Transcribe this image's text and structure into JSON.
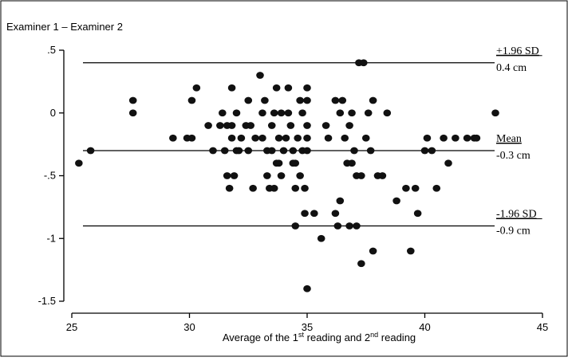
{
  "chart_data": {
    "type": "scatter",
    "ylabel": "Examiner 1 – Examiner 2",
    "xlabel": {
      "prefix": "Average of the 1",
      "sup1": "st",
      "middle": " reading and 2",
      "sup2": "nd",
      "suffix": " reading"
    },
    "xlim": [
      25,
      45
    ],
    "ylim": [
      -1.5,
      0.5
    ],
    "x_ticks": [
      25,
      30,
      35,
      40,
      45
    ],
    "y_ticks": [
      {
        "value": 0.5,
        "label": ".5"
      },
      {
        "value": 0,
        "label": "0"
      },
      {
        "value": -0.5,
        "label": "-.5"
      },
      {
        "value": -1,
        "label": "-1"
      },
      {
        "value": -1.5,
        "label": "-1.5"
      }
    ],
    "grid": false,
    "reference_lines": [
      {
        "y": 0.4,
        "label_top": "+1.96 SD",
        "label_bottom": "0.4 cm"
      },
      {
        "y": -0.3,
        "label_top": "Mean",
        "label_bottom": "-0.3 cm"
      },
      {
        "y": -0.9,
        "label_top": "-1.96 SD",
        "label_bottom": "-0.9 cm"
      }
    ],
    "points": [
      [
        25.3,
        -0.4
      ],
      [
        25.8,
        -0.3
      ],
      [
        27.6,
        0.1
      ],
      [
        27.6,
        0
      ],
      [
        29.3,
        -0.2
      ],
      [
        29.9,
        -0.2
      ],
      [
        30.1,
        -0.2
      ],
      [
        30.1,
        0.1
      ],
      [
        30.3,
        0.2
      ],
      [
        30.8,
        -0.1
      ],
      [
        31.0,
        -0.3
      ],
      [
        31.3,
        -0.1
      ],
      [
        31.4,
        0
      ],
      [
        31.5,
        -0.3
      ],
      [
        31.6,
        -0.1
      ],
      [
        31.6,
        -0.5
      ],
      [
        31.7,
        -0.6
      ],
      [
        31.8,
        0.2
      ],
      [
        31.8,
        -0.1
      ],
      [
        31.8,
        -0.2
      ],
      [
        31.9,
        -0.5
      ],
      [
        32.0,
        0
      ],
      [
        32.0,
        -0.3
      ],
      [
        32.1,
        -0.3
      ],
      [
        32.2,
        -0.2
      ],
      [
        32.4,
        -0.1
      ],
      [
        32.5,
        0.1
      ],
      [
        32.5,
        -0.3
      ],
      [
        32.6,
        -0.1
      ],
      [
        32.7,
        -0.6
      ],
      [
        32.8,
        -0.2
      ],
      [
        33.0,
        0.3
      ],
      [
        33.1,
        0
      ],
      [
        33.1,
        -0.2
      ],
      [
        33.2,
        0.1
      ],
      [
        33.3,
        -0.3
      ],
      [
        33.3,
        -0.5
      ],
      [
        33.4,
        -0.6
      ],
      [
        33.5,
        -0.1
      ],
      [
        33.5,
        -0.3
      ],
      [
        33.6,
        0
      ],
      [
        33.6,
        -0.6
      ],
      [
        33.7,
        0.2
      ],
      [
        33.7,
        -0.4
      ],
      [
        33.8,
        -0.2
      ],
      [
        33.8,
        -0.4
      ],
      [
        33.9,
        0
      ],
      [
        33.9,
        -0.5
      ],
      [
        34.0,
        -0.3
      ],
      [
        34.1,
        -0.2
      ],
      [
        34.2,
        0.2
      ],
      [
        34.2,
        0
      ],
      [
        34.3,
        -0.1
      ],
      [
        34.4,
        -0.3
      ],
      [
        34.4,
        -0.4
      ],
      [
        34.5,
        -0.4
      ],
      [
        34.5,
        -0.6
      ],
      [
        34.5,
        -0.9
      ],
      [
        34.6,
        -0.2
      ],
      [
        34.7,
        0.1
      ],
      [
        34.7,
        -0.5
      ],
      [
        34.8,
        0
      ],
      [
        34.8,
        -0.3
      ],
      [
        34.9,
        -0.6
      ],
      [
        34.9,
        -0.8
      ],
      [
        35.0,
        0.2
      ],
      [
        35.0,
        0.1
      ],
      [
        35.0,
        -0.1
      ],
      [
        35.0,
        -0.2
      ],
      [
        35.0,
        -0.3
      ],
      [
        35.0,
        -1.4
      ],
      [
        35.6,
        -1.0
      ],
      [
        35.8,
        -0.1
      ],
      [
        35.9,
        -0.2
      ],
      [
        36.2,
        -0.8
      ],
      [
        36.3,
        -0.9
      ],
      [
        36.4,
        -0.7
      ],
      [
        36.2,
        0.1
      ],
      [
        36.4,
        0
      ],
      [
        36.5,
        0.1
      ],
      [
        36.6,
        -0.2
      ],
      [
        36.7,
        -0.4
      ],
      [
        36.8,
        -0.1
      ],
      [
        36.9,
        0
      ],
      [
        37.0,
        -0.3
      ],
      [
        37.1,
        -0.9
      ],
      [
        37.3,
        -0.5
      ],
      [
        37.5,
        -0.2
      ],
      [
        37.6,
        0
      ],
      [
        37.7,
        -0.3
      ],
      [
        37.8,
        0.1
      ],
      [
        38.0,
        -0.5
      ],
      [
        38.2,
        -0.5
      ],
      [
        38.4,
        0
      ],
      [
        38.8,
        -0.7
      ],
      [
        39.2,
        -0.6
      ],
      [
        39.4,
        -1.1
      ],
      [
        39.6,
        -0.6
      ],
      [
        39.7,
        -0.8
      ],
      [
        40.0,
        -0.3
      ],
      [
        40.1,
        -0.2
      ],
      [
        40.3,
        -0.3
      ],
      [
        40.5,
        -0.6
      ],
      [
        40.8,
        -0.2
      ],
      [
        41.0,
        -0.4
      ],
      [
        41.3,
        -0.2
      ],
      [
        41.8,
        -0.2
      ],
      [
        42.1,
        -0.2
      ],
      [
        42.2,
        -0.2
      ],
      [
        43.0,
        0
      ],
      [
        37.2,
        0.4
      ],
      [
        37.4,
        0.4
      ],
      [
        37.3,
        -1.2
      ],
      [
        37.8,
        -1.1
      ],
      [
        36.8,
        -0.9
      ],
      [
        35.3,
        -0.8
      ],
      [
        36.9,
        -0.4
      ],
      [
        37.1,
        -0.5
      ]
    ]
  }
}
